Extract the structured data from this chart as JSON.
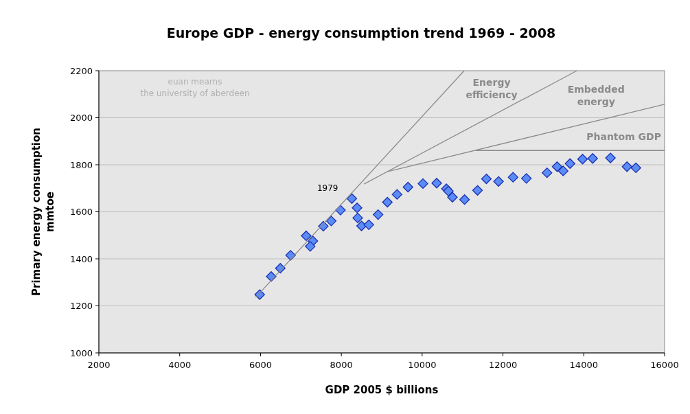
{
  "chart_data": {
    "type": "scatter",
    "title": "Europe GDP - energy consumption trend 1969 - 2008",
    "xlabel": "GDP 2005 $ billions",
    "ylabel": "Primary energy consumption\nmmtoe",
    "xlim": [
      2000,
      16000
    ],
    "xticks": [
      2000,
      4000,
      6000,
      8000,
      10000,
      12000,
      14000,
      16000
    ],
    "ylim": [
      1000,
      2200
    ],
    "yticks": [
      1000,
      1200,
      1400,
      1600,
      1800,
      2000,
      2200
    ],
    "grid": "y",
    "marker": "diamond",
    "annotations": [
      "euan mearns",
      "the university of aberdeen",
      {
        "text": "1979",
        "x": 8260,
        "y": 1655
      }
    ],
    "series": [
      {
        "color": "#5b8cf5",
        "x": [
          5980,
          6265,
          6490,
          6745,
          7130,
          7295,
          7230,
          7555,
          7750,
          7980,
          8260,
          8390,
          8405,
          8500,
          8680,
          8910,
          9140,
          9380,
          9650,
          10020,
          10360,
          10600,
          10650,
          10750,
          11050,
          11370,
          11590,
          11890,
          12250,
          12580,
          13090,
          13340,
          13490,
          13660,
          13970,
          14220,
          14660,
          15070,
          15290
        ],
        "values": [
          1248,
          1325,
          1360,
          1415,
          1498,
          1476,
          1453,
          1539,
          1561,
          1607,
          1656,
          1617,
          1574,
          1540,
          1545,
          1588,
          1641,
          1674,
          1705,
          1720,
          1722,
          1698,
          1688,
          1662,
          1652,
          1691,
          1740,
          1729,
          1747,
          1742,
          1766,
          1792,
          1774,
          1805,
          1824,
          1827,
          1829,
          1792,
          1787
        ]
      },
      {
        "type": "line",
        "name": "Energy efficiency",
        "color": "#8c8c8c",
        "marker": "none",
        "x": [
          5880,
          11040
        ],
        "values": [
          1236,
          2200
        ]
      },
      {
        "type": "line",
        "name": "Embedded energy",
        "color": "#8c8c8c",
        "marker": "none",
        "x": [
          8560,
          13830
        ],
        "values": [
          1718,
          2200
        ]
      },
      {
        "type": "line",
        "name": "Phantom GDP",
        "color": "#8c8c8c",
        "marker": "none",
        "x": [
          9150,
          16000
        ],
        "values": [
          1771,
          2057
        ]
      },
      {
        "type": "line",
        "color": "#6e6e6e",
        "marker": "none",
        "x": [
          11330,
          16000
        ],
        "values": [
          1861,
          1861
        ]
      }
    ]
  }
}
